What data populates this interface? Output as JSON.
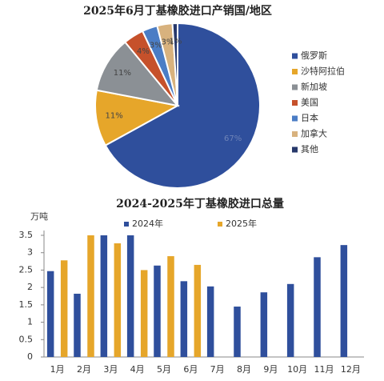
{
  "chart_data": [
    {
      "type": "pie",
      "title": "2025年6月丁基橡胶进口产销国/地区",
      "categories": [
        "俄罗斯",
        "沙特阿拉伯",
        "新加坡",
        "美国",
        "日本",
        "加拿大",
        "其他"
      ],
      "values": [
        67,
        11,
        11,
        4,
        3,
        3,
        1
      ],
      "value_labels": [
        "67%",
        "11%",
        "11%",
        "4%",
        "3%",
        "3%",
        "1%"
      ],
      "colors": [
        "#2f4f9c",
        "#e6a62a",
        "#8b9095",
        "#c6512b",
        "#4b7dc5",
        "#d8b27e",
        "#27386b"
      ],
      "legend": "right"
    },
    {
      "type": "bar",
      "title": "2024-2025年丁基橡胶进口总量",
      "ylabel": "万吨",
      "categories": [
        "1月",
        "2月",
        "3月",
        "4月",
        "5月",
        "6月",
        "7月",
        "8月",
        "9月",
        "10月",
        "11月",
        "12月"
      ],
      "series": [
        {
          "name": "2024年",
          "color": "#2f4f9c",
          "values": [
            2.47,
            1.82,
            3.5,
            3.5,
            2.63,
            2.18,
            2.03,
            1.45,
            1.86,
            2.1,
            2.87,
            3.22
          ]
        },
        {
          "name": "2025年",
          "color": "#e6a62a",
          "values": [
            2.78,
            3.5,
            3.27,
            2.5,
            2.9,
            2.65,
            null,
            null,
            null,
            null,
            null,
            null
          ]
        }
      ],
      "ylim": [
        0,
        3.5
      ],
      "yticks": [
        0,
        0.5,
        1,
        1.5,
        2,
        2.5,
        3,
        3.5
      ],
      "grid": false,
      "legend": "top"
    }
  ]
}
